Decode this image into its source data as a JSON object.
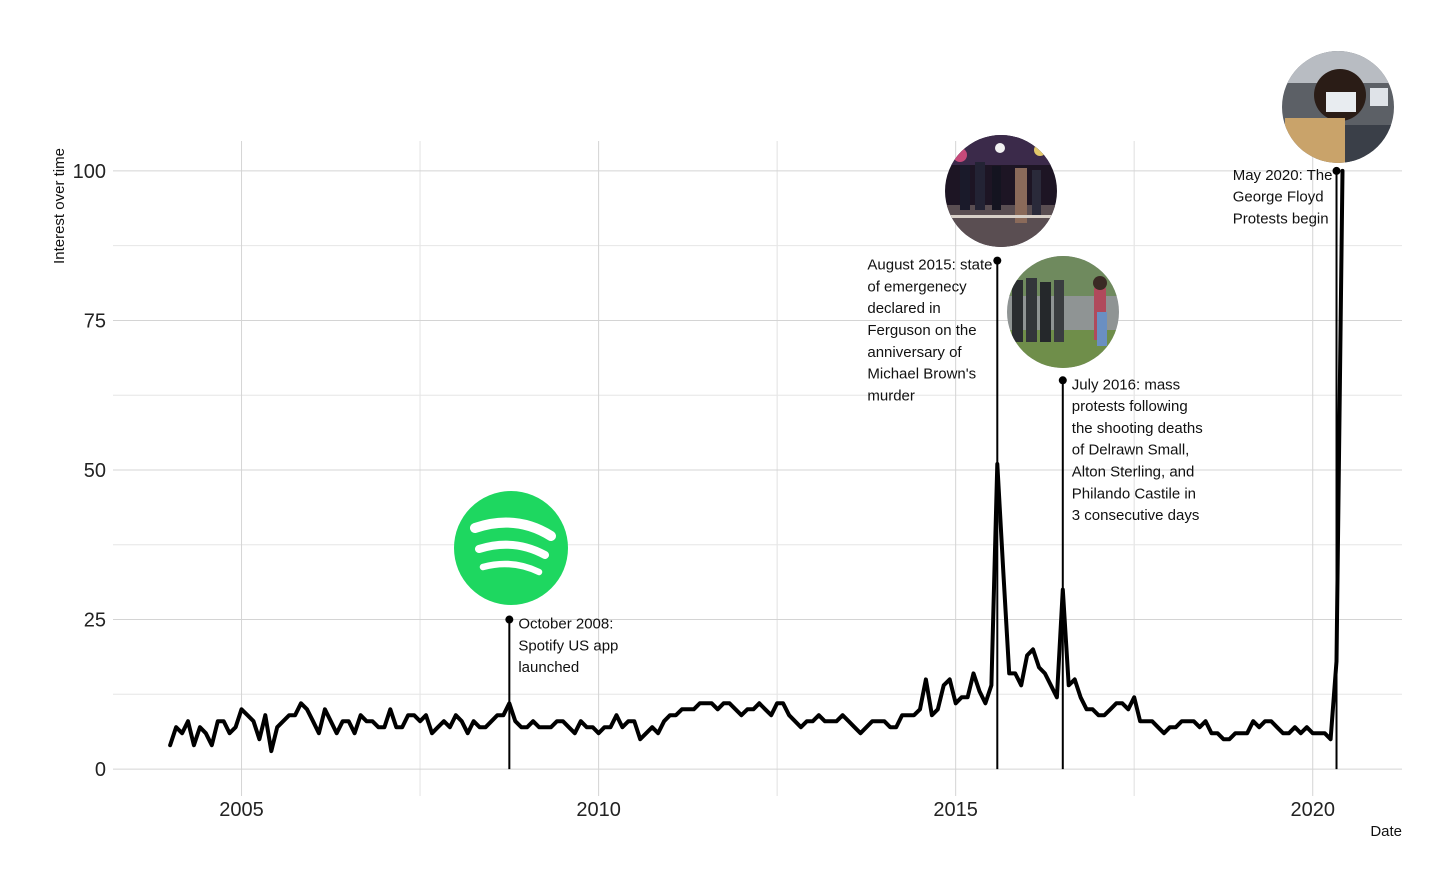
{
  "chart_data": {
    "type": "line",
    "title": "",
    "xlabel": "Date",
    "ylabel": "Interest over time",
    "xlim": [
      2003.2,
      2021.25
    ],
    "ylim": [
      -4.5,
      105
    ],
    "x_ticks": [
      2005,
      2010,
      2015,
      2020
    ],
    "y_ticks": [
      0,
      25,
      50,
      75,
      100
    ],
    "grid": true,
    "series": [
      {
        "color": "#000000",
        "x": [
          2004.0,
          2004.083,
          2004.167,
          2004.25,
          2004.333,
          2004.417,
          2004.5,
          2004.583,
          2004.667,
          2004.75,
          2004.833,
          2004.917,
          2005.0,
          2005.083,
          2005.167,
          2005.25,
          2005.333,
          2005.417,
          2005.5,
          2005.583,
          2005.667,
          2005.75,
          2005.833,
          2005.917,
          2006.0,
          2006.083,
          2006.167,
          2006.25,
          2006.333,
          2006.417,
          2006.5,
          2006.583,
          2006.667,
          2006.75,
          2006.833,
          2006.917,
          2007.0,
          2007.083,
          2007.167,
          2007.25,
          2007.333,
          2007.417,
          2007.5,
          2007.583,
          2007.667,
          2007.75,
          2007.833,
          2007.917,
          2008.0,
          2008.083,
          2008.167,
          2008.25,
          2008.333,
          2008.417,
          2008.5,
          2008.583,
          2008.667,
          2008.75,
          2008.833,
          2008.917,
          2009.0,
          2009.083,
          2009.167,
          2009.25,
          2009.333,
          2009.417,
          2009.5,
          2009.583,
          2009.667,
          2009.75,
          2009.833,
          2009.917,
          2010.0,
          2010.083,
          2010.167,
          2010.25,
          2010.333,
          2010.417,
          2010.5,
          2010.583,
          2010.667,
          2010.75,
          2010.833,
          2010.917,
          2011.0,
          2011.083,
          2011.167,
          2011.25,
          2011.333,
          2011.417,
          2011.5,
          2011.583,
          2011.667,
          2011.75,
          2011.833,
          2011.917,
          2012.0,
          2012.083,
          2012.167,
          2012.25,
          2012.333,
          2012.417,
          2012.5,
          2012.583,
          2012.667,
          2012.75,
          2012.833,
          2012.917,
          2013.0,
          2013.083,
          2013.167,
          2013.25,
          2013.333,
          2013.417,
          2013.5,
          2013.583,
          2013.667,
          2013.75,
          2013.833,
          2013.917,
          2014.0,
          2014.083,
          2014.167,
          2014.25,
          2014.333,
          2014.417,
          2014.5,
          2014.583,
          2014.667,
          2014.75,
          2014.833,
          2014.917,
          2015.0,
          2015.083,
          2015.167,
          2015.25,
          2015.333,
          2015.417,
          2015.5,
          2015.583,
          2015.667,
          2015.75,
          2015.833,
          2015.917,
          2016.0,
          2016.083,
          2016.167,
          2016.25,
          2016.333,
          2016.417,
          2016.5,
          2016.583,
          2016.667,
          2016.75,
          2016.833,
          2016.917,
          2017.0,
          2017.083,
          2017.167,
          2017.25,
          2017.333,
          2017.417,
          2017.5,
          2017.583,
          2017.667,
          2017.75,
          2017.833,
          2017.917,
          2018.0,
          2018.083,
          2018.167,
          2018.25,
          2018.333,
          2018.417,
          2018.5,
          2018.583,
          2018.667,
          2018.75,
          2018.833,
          2018.917,
          2019.0,
          2019.083,
          2019.167,
          2019.25,
          2019.333,
          2019.417,
          2019.5,
          2019.583,
          2019.667,
          2019.75,
          2019.833,
          2019.917,
          2020.0,
          2020.083,
          2020.167,
          2020.25,
          2020.333,
          2020.417
        ],
        "values": [
          4,
          7,
          6,
          8,
          4,
          7,
          6,
          4,
          8,
          8,
          6,
          7,
          10,
          9,
          8,
          5,
          9,
          3,
          7,
          8,
          9,
          9,
          11,
          10,
          8,
          6,
          10,
          8,
          6,
          8,
          8,
          6,
          9,
          8,
          8,
          7,
          7,
          10,
          7,
          7,
          9,
          9,
          8,
          9,
          6,
          7,
          8,
          7,
          9,
          8,
          6,
          8,
          7,
          7,
          8,
          9,
          9,
          11,
          8,
          7,
          7,
          8,
          7,
          7,
          7,
          8,
          8,
          7,
          6,
          8,
          7,
          7,
          6,
          7,
          7,
          9,
          7,
          8,
          8,
          5,
          6,
          7,
          6,
          8,
          9,
          9,
          10,
          10,
          10,
          11,
          11,
          11,
          10,
          11,
          11,
          10,
          9,
          10,
          10,
          11,
          10,
          9,
          11,
          11,
          9,
          8,
          7,
          8,
          8,
          9,
          8,
          8,
          8,
          9,
          8,
          7,
          6,
          7,
          8,
          8,
          8,
          7,
          7,
          9,
          9,
          9,
          10,
          15,
          9,
          10,
          14,
          15,
          11,
          12,
          12,
          16,
          13,
          11,
          14,
          51,
          33,
          16,
          16,
          14,
          19,
          20,
          17,
          16,
          14,
          12,
          30,
          14,
          15,
          12,
          10,
          10,
          9,
          9,
          10,
          11,
          11,
          10,
          12,
          8,
          8,
          8,
          7,
          6,
          7,
          7,
          8,
          8,
          8,
          7,
          8,
          6,
          6,
          5,
          5,
          6,
          6,
          6,
          8,
          7,
          8,
          8,
          7,
          6,
          6,
          7,
          6,
          7,
          6,
          6,
          6,
          5,
          18,
          100
        ]
      }
    ],
    "annotations": [
      {
        "x": 2008.75,
        "y": 25,
        "lines": [
          "October 2008:",
          "Spotify US app",
          "launched"
        ],
        "side": "right",
        "image": "spotify-logo",
        "image_color": "#1ed760"
      },
      {
        "x": 2015.583,
        "y": 85,
        "lines": [
          "August 2015: state",
          "of emergenecy",
          "declared in",
          "Ferguson on the",
          "anniversary of",
          "Michael Brown's",
          "murder"
        ],
        "side": "left",
        "image": "ferguson-protest-photo"
      },
      {
        "x": 2016.5,
        "y": 65,
        "lines": [
          "July 2016: mass",
          "protests following",
          "the shooting deaths",
          "of Delrawn Small,",
          "Alton Sterling, and",
          "Philando Castile in",
          "3 consecutive days"
        ],
        "side": "right",
        "image": "baton-rouge-protest-photo"
      },
      {
        "x": 2020.333,
        "y": 100,
        "lines": [
          "May 2020: The",
          "George Floyd",
          "Protests begin"
        ],
        "side": "left",
        "image": "george-floyd-protest-photo"
      }
    ]
  }
}
